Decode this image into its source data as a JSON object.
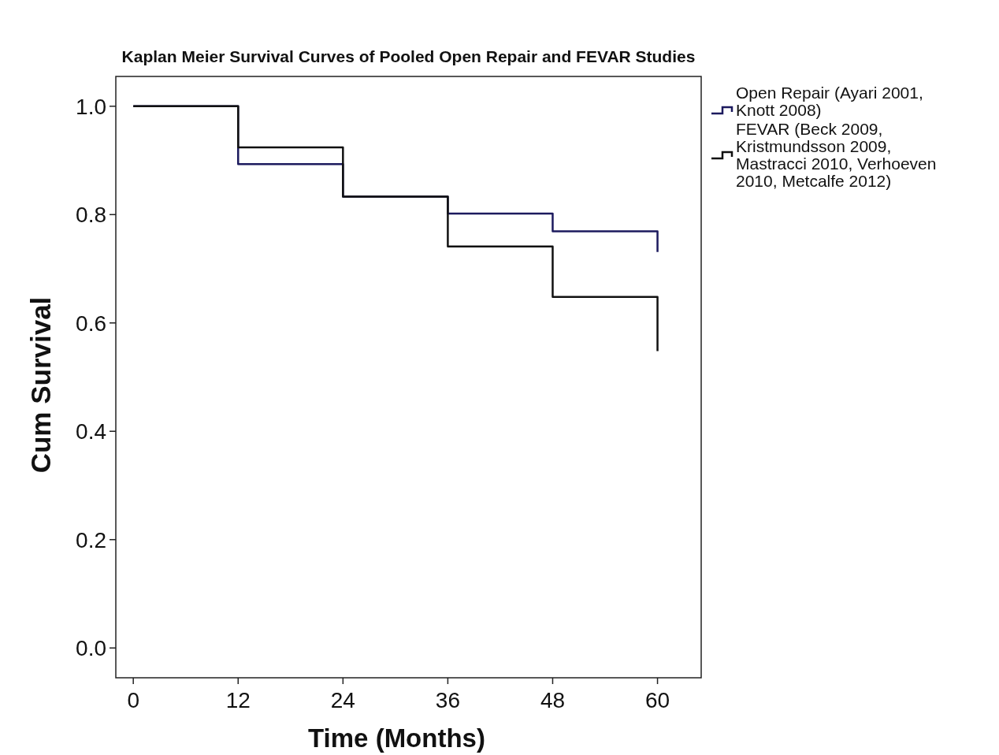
{
  "chart_data": {
    "type": "step",
    "title": "Kaplan Meier Survival Curves of Pooled Open Repair and FEVAR Studies",
    "xlabel": "Time (Months)",
    "ylabel": "Cum Survival",
    "xlim": [
      -2,
      65
    ],
    "xticks": [
      0,
      12,
      24,
      36,
      48,
      60
    ],
    "ylim": [
      -0.055,
      1.055
    ],
    "yticks": [
      {
        "value": 0,
        "label": "0.0"
      },
      {
        "value": 0.2,
        "label": "0.2"
      },
      {
        "value": 0.4,
        "label": "0.4"
      },
      {
        "value": 0.6,
        "label": "0.6"
      },
      {
        "value": 0.8,
        "label": "0.8"
      },
      {
        "value": 1,
        "label": "1.0"
      }
    ],
    "grid": false,
    "legend": "right",
    "line_style": "solid",
    "series": [
      {
        "name": "Open Repair (Ayari 2001, Knott 2008)",
        "color": "#1c1a5e",
        "x": [
          0,
          12,
          24,
          36,
          48,
          60,
          60
        ],
        "values": [
          1.0,
          0.893,
          0.833,
          0.802,
          0.769,
          0.769,
          0.731
        ]
      },
      {
        "name": "FEVAR (Beck 2009, Kristmundsson 2009, Mastracci 2010, Verhoeven 2010, Metcalfe 2012)",
        "color": "#111111",
        "x": [
          0,
          12,
          24,
          36,
          48,
          60,
          60
        ],
        "values": [
          1.0,
          0.924,
          0.833,
          0.741,
          0.648,
          0.648,
          0.548
        ]
      }
    ]
  }
}
